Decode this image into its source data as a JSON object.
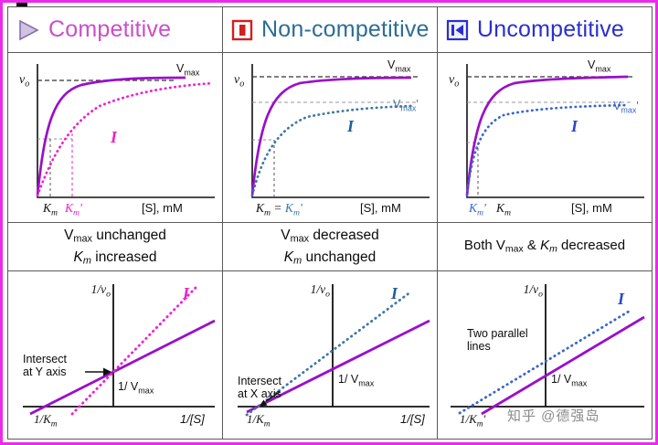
{
  "header": {
    "cols": [
      {
        "label": "Competitive",
        "color": "#c94fc9",
        "icon": "play-icon"
      },
      {
        "label": "Non-competitive",
        "color": "#2d6d94",
        "icon": "stop-icon"
      },
      {
        "label": "Uncompetitive",
        "color": "#2a2fd0",
        "icon": "previous-icon"
      }
    ]
  },
  "colors": {
    "purple": "#9a0fca",
    "magenta": "#ef1fd0",
    "steel_blue": "#3f76a6",
    "steel_blue_dark": "#1f5d94",
    "blue": "#3a66cc",
    "blue_dark": "#2746c8",
    "axis": "#111111"
  },
  "labels": {
    "v0": [
      {
        "t": "v",
        "i": 1
      },
      {
        "t": "o",
        "sub": 1,
        "i": 1
      }
    ],
    "vmax": [
      {
        "t": "V"
      },
      {
        "t": "max",
        "sub": 1
      }
    ],
    "vmax_prime": [
      {
        "t": "V"
      },
      {
        "t": "max",
        "sub": 1
      },
      {
        "t": "'"
      }
    ],
    "inhibitor": [
      {
        "t": "I"
      }
    ],
    "s_axis": [
      {
        "t": "[S], mM"
      }
    ],
    "km": [
      {
        "t": "K",
        "i": 1
      },
      {
        "t": "m",
        "sub": 1,
        "i": 1
      }
    ],
    "km_prime": [
      {
        "t": "K",
        "i": 1
      },
      {
        "t": "m",
        "sub": 1,
        "i": 1
      },
      {
        "t": "'",
        "i": 1
      }
    ],
    "km_eq_km_prime": [
      {
        "t": "K",
        "i": 1
      },
      {
        "t": "m",
        "sub": 1,
        "i": 1
      },
      {
        "t": " = "
      },
      {
        "t": "K",
        "i": 1,
        "c": "#3f76a6"
      },
      {
        "t": "m",
        "sub": 1,
        "i": 1,
        "c": "#3f76a6"
      },
      {
        "t": "'",
        "i": 1,
        "c": "#3f76a6"
      }
    ],
    "recip_v0": [
      {
        "t": "1/",
        "i": 1
      },
      {
        "t": "v",
        "i": 1
      },
      {
        "t": "o",
        "sub": 1,
        "i": 1
      }
    ],
    "recip_vmax": [
      {
        "t": "1/ V"
      },
      {
        "t": "max",
        "sub": 1
      }
    ],
    "recip_km": [
      {
        "t": "1/K",
        "i": 1
      },
      {
        "t": "m",
        "sub": 1,
        "i": 1
      }
    ],
    "recip_km_prime": [
      {
        "t": "1/K",
        "i": 1
      },
      {
        "t": "m",
        "sub": 1,
        "i": 1
      },
      {
        "t": "'",
        "i": 1
      }
    ],
    "recip_s": [
      {
        "t": "1/[S]",
        "i": 1
      }
    ]
  },
  "descriptions": {
    "competitive": {
      "line1": [
        {
          "t": "V"
        },
        {
          "t": "max",
          "sub": 1
        },
        {
          "t": " unchanged"
        }
      ],
      "line2": [
        {
          "t": "K",
          "i": 1
        },
        {
          "t": "m",
          "sub": 1,
          "i": 1
        },
        {
          "t": " increased"
        }
      ]
    },
    "noncompetitive": {
      "line1": [
        {
          "t": "V"
        },
        {
          "t": "max",
          "sub": 1
        },
        {
          "t": " decreased"
        }
      ],
      "line2": [
        {
          "t": "K",
          "i": 1
        },
        {
          "t": "m",
          "sub": 1,
          "i": 1
        },
        {
          "t": " unchanged"
        }
      ]
    },
    "uncompetitive": {
      "line1": [
        {
          "t": "Both V"
        },
        {
          "t": "max",
          "sub": 1
        },
        {
          "t": " & "
        },
        {
          "t": "K",
          "i": 1
        },
        {
          "t": "m",
          "sub": 1,
          "i": 1
        },
        {
          "t": " decreased"
        }
      ]
    }
  },
  "lb_notes": {
    "competitive": [
      "Intersect",
      "at Y axis"
    ],
    "noncompetitive": [
      "Intersect",
      "at X axis"
    ],
    "uncompetitive": [
      "Two parallel",
      "lines"
    ]
  },
  "watermark": "知乎 @德强岛"
}
